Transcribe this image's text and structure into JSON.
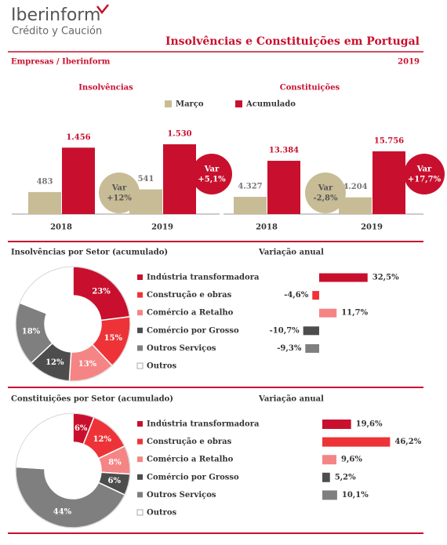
{
  "header": {
    "logo": "Iberinform",
    "logo_sub": "Crédito y Caución",
    "title": "Insolvências e Constituições em  Portugal",
    "subtitle": "Empresas / Iberinform",
    "year": "2019"
  },
  "chart_data": [
    {
      "type": "bar",
      "title": "Insolvências",
      "categories": [
        "2018",
        "2019"
      ],
      "series": [
        {
          "name": "Março",
          "color": "#c8bc96",
          "values": [
            483,
            541
          ]
        },
        {
          "name": "Acumulado",
          "color": "#c8102e",
          "values": [
            1456,
            1530
          ],
          "value_labels": [
            "1.456",
            "1.530"
          ]
        }
      ],
      "annotations": [
        {
          "label": "Var",
          "text": "+12%"
        },
        {
          "label": "Var",
          "text": "+5,1%"
        }
      ]
    },
    {
      "type": "bar",
      "title": "Constituições",
      "categories": [
        "2018",
        "2019"
      ],
      "series": [
        {
          "color": "#c8bc96",
          "values": [
            4327,
            4204
          ],
          "value_labels": [
            "4.327",
            "4.204"
          ]
        },
        {
          "color": "#c8102e",
          "values": [
            13384,
            15756
          ],
          "value_labels": [
            "13.384",
            "15.756"
          ]
        }
      ],
      "annotations": [
        {
          "label": "Var",
          "text": "-2,8%"
        },
        {
          "label": "Var",
          "text": "+17,7%"
        }
      ]
    },
    {
      "type": "pie",
      "donut": true,
      "title": "Insolvências por Setor (acumulado)",
      "categories": [
        "Indústria transformadora",
        "Construção e obras",
        "Comércio a Retalho",
        "Comércio por Grosso",
        "Outros Serviços",
        "Outros"
      ],
      "values": [
        23,
        15,
        13,
        12,
        18,
        19
      ],
      "value_labels": [
        "23%",
        "15%",
        "13%",
        "12%",
        "18%",
        null
      ],
      "colors": [
        "#c8102e",
        "#ee3338",
        "#f48584",
        "#4d4d4d",
        "#7f7f7f",
        "#ffffff"
      ]
    },
    {
      "type": "hbar",
      "title": "Variação anual",
      "values": [
        32.5,
        -4.6,
        11.7,
        -10.7,
        -9.3,
        null
      ],
      "value_labels": [
        "32,5%",
        "-4,6%",
        "11,7%",
        "-10,7%",
        "-9,3%",
        null
      ],
      "colors": [
        "#c8102e",
        "#ee3338",
        "#f48584",
        "#4d4d4d",
        "#7f7f7f",
        "#ffffff"
      ]
    },
    {
      "type": "pie",
      "donut": true,
      "title": "Constituições por Setor (acumulado)",
      "categories": [
        "Indústria transformadora",
        "Construção e obras",
        "Comércio a Retalho",
        "Comércio por Grosso",
        "Outros Serviços",
        "Outros"
      ],
      "values": [
        6,
        12,
        8,
        6,
        44,
        24
      ],
      "value_labels": [
        "6%",
        "12%",
        "8%",
        "6%",
        "44%",
        null
      ],
      "colors": [
        "#c8102e",
        "#ee3338",
        "#f48584",
        "#4d4d4d",
        "#7f7f7f",
        "#ffffff"
      ]
    },
    {
      "type": "hbar",
      "title": "Variação anual",
      "values": [
        19.6,
        46.2,
        9.6,
        5.2,
        10.1,
        null
      ],
      "value_labels": [
        "19,6%",
        "46,2%",
        "9,6%",
        "5,2%",
        "10,1%",
        null
      ],
      "colors": [
        "#c8102e",
        "#ee3338",
        "#f48584",
        "#4d4d4d",
        "#7f7f7f",
        "#ffffff"
      ]
    }
  ]
}
